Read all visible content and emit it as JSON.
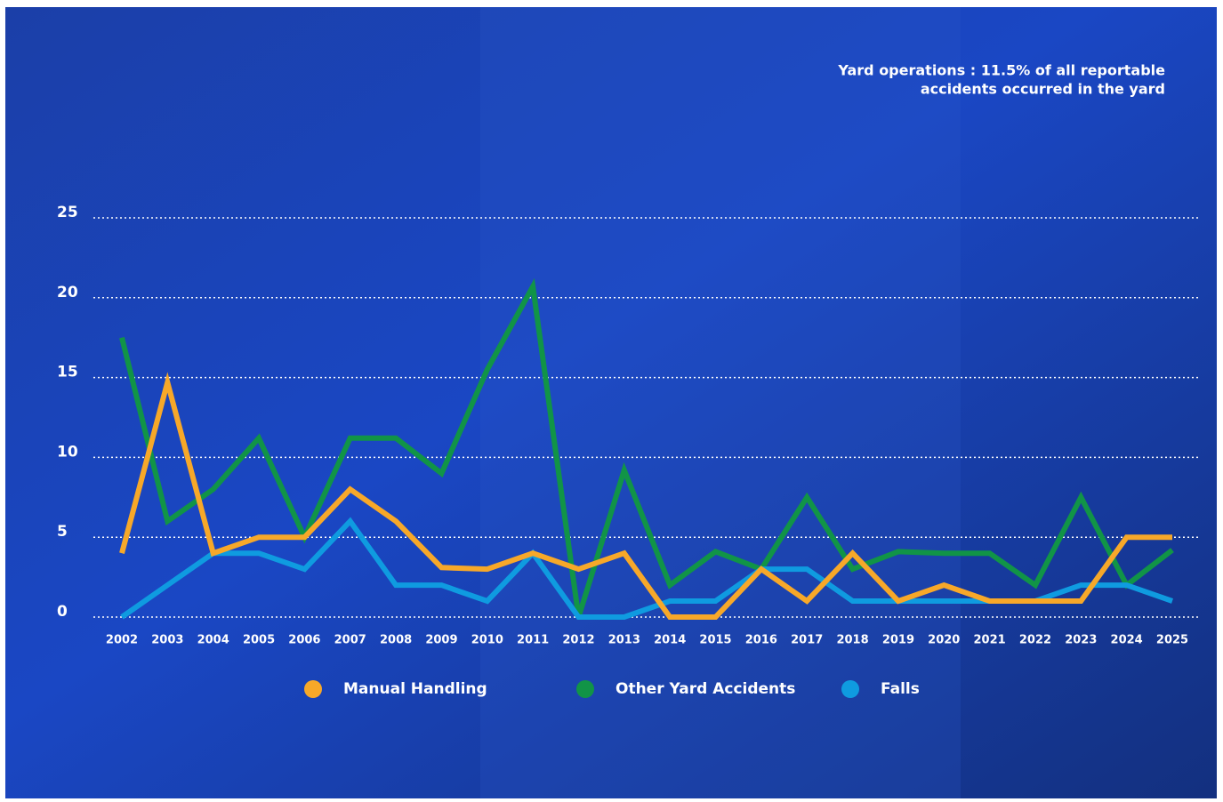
{
  "chart_data": {
    "type": "line",
    "annotation": [
      "Yard operations : 11.5% of all reportable",
      "accidents occurred in the yard"
    ],
    "categories": [
      "2002",
      "2003",
      "2004",
      "2005",
      "2006",
      "2007",
      "2008",
      "2009",
      "2010",
      "2011",
      "2012",
      "2013",
      "2014",
      "2015",
      "2016",
      "2017",
      "2018",
      "2019",
      "2020",
      "2021",
      "2022",
      "2023",
      "2024",
      "2025"
    ],
    "series": [
      {
        "name": "Manual Handling",
        "color": "#f7a829",
        "values": [
          4,
          14.7,
          4,
          5,
          5,
          8,
          6,
          3.1,
          3,
          4,
          3,
          4,
          0,
          0,
          3,
          1,
          4,
          1,
          2,
          1,
          1,
          1,
          5,
          5
        ]
      },
      {
        "name": "Other Yard Accidents",
        "color": "#119447",
        "values": [
          17.5,
          6,
          8,
          11.2,
          5,
          11.2,
          11.2,
          9,
          15.5,
          20.7,
          0,
          9.2,
          2,
          4.1,
          3,
          7.5,
          3,
          4.1,
          4,
          4,
          2,
          7.5,
          2,
          4.2
        ]
      },
      {
        "name": "Falls",
        "color": "#0f9be0",
        "values": [
          0,
          2,
          4,
          4,
          3,
          6,
          2,
          2,
          1,
          4,
          0,
          0,
          1,
          1,
          3,
          3,
          1,
          1,
          1,
          1,
          1,
          2,
          2,
          1
        ]
      }
    ],
    "ylim": [
      0,
      25
    ],
    "yticks": [
      0,
      5,
      10,
      15,
      20,
      25
    ],
    "grid": true
  }
}
